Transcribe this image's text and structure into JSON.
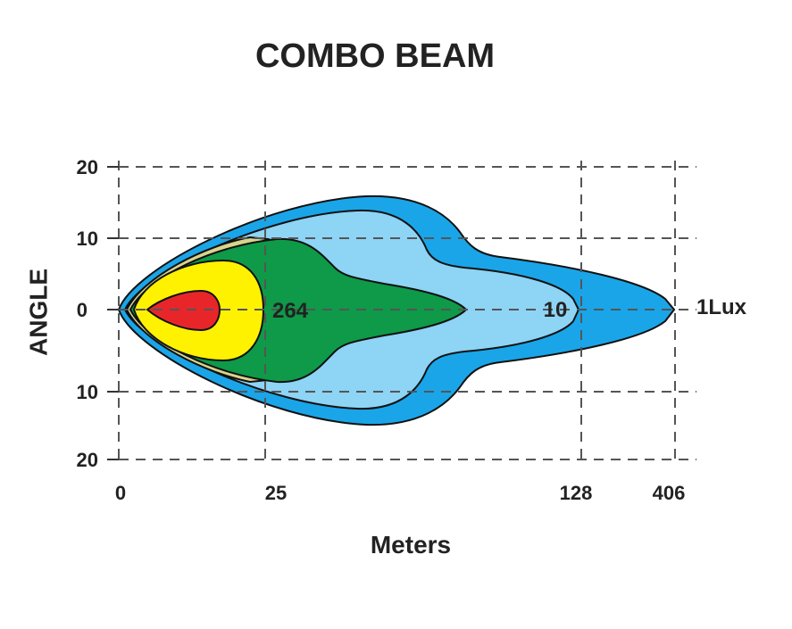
{
  "header": {
    "title": "COMBO  BEAM"
  },
  "y_axis": {
    "label": "ANGLE",
    "ticks": [
      "20",
      "10",
      "0",
      "10",
      "20"
    ]
  },
  "x_axis": {
    "label": "Meters",
    "ticks": [
      "0",
      "25",
      "128",
      "406"
    ]
  },
  "contours": {
    "labels": [
      "264",
      "10",
      "1Lux"
    ]
  }
}
